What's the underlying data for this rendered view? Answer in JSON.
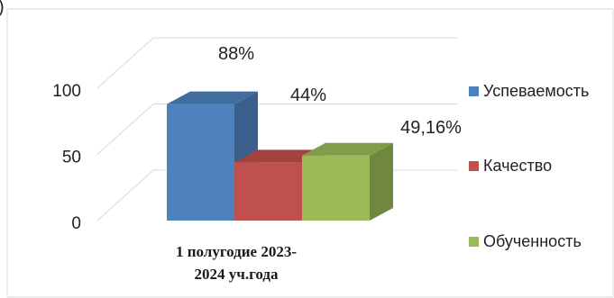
{
  "corner_label": ")",
  "chart_data": {
    "type": "bar",
    "categories": [
      "1 полугодие 2023-2024 уч.года"
    ],
    "category_lines": [
      "1 полугодие 2023-",
      "2024 уч.года"
    ],
    "ylim": [
      0,
      100
    ],
    "yticks": [
      0,
      50,
      100
    ],
    "series": [
      {
        "name": "Успеваемость",
        "values": [
          88
        ],
        "label": "88%",
        "color": "#4f81bd",
        "side": "#3a5f8c",
        "top": "#416c9f"
      },
      {
        "name": "Качество",
        "values": [
          44
        ],
        "label": "44%",
        "color": "#c0504d",
        "side": "#8e3b39",
        "top": "#a3423f"
      },
      {
        "name": "Обученность",
        "values": [
          49.16
        ],
        "label": "49,16%",
        "color": "#9bbb59",
        "side": "#6f873f",
        "top": "#809d49"
      }
    ],
    "legend_position": "right",
    "grid": true,
    "perspective": "3d"
  }
}
